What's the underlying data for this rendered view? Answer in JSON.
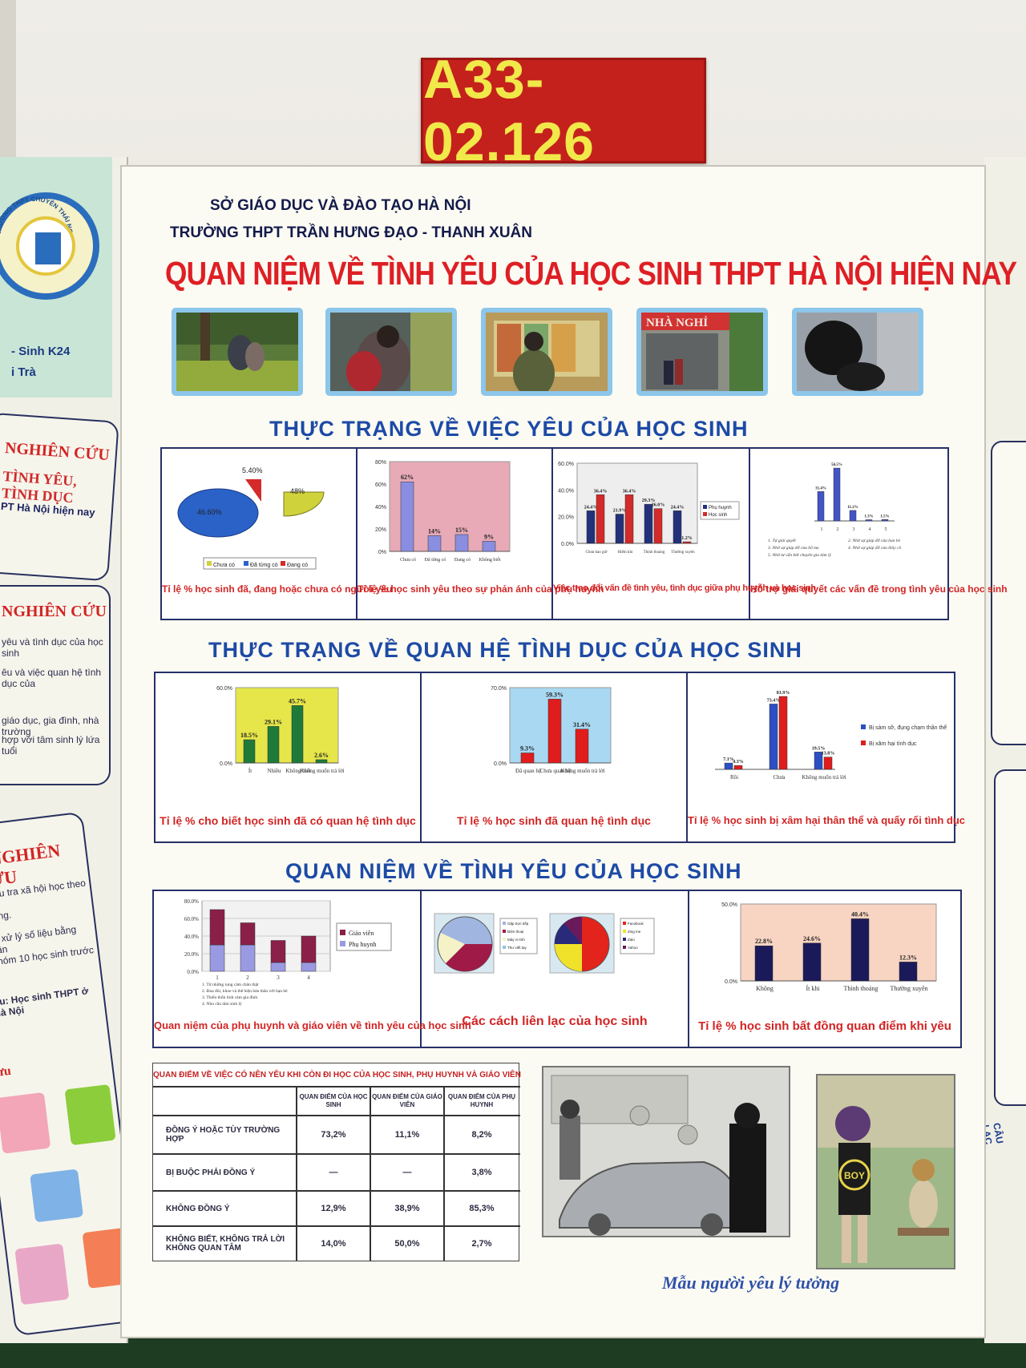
{
  "booth_tag": "A33- 02.126",
  "header": {
    "line1": "SỞ GIÁO DỤC VÀ ĐÀO TẠO HÀ NỘI",
    "line2": "TRƯỜNG THPT TRẦN HƯNG ĐẠO - THANH XUÂN"
  },
  "title": "QUAN NIỆM VỀ TÌNH YÊU CỦA HỌC SINH THPT HÀ NỘI HIỆN NAY",
  "sections": {
    "s1": "THỰC TRẠNG VỀ VIỆC YÊU CỦA HỌC SINH",
    "s2": "THỰC TRẠNG VỀ QUAN HỆ TÌNH DỤC CỦA HỌC SINH",
    "s3": "QUAN NIỆM VỀ TÌNH YÊU CỦA HỌC SINH"
  },
  "photo_sign": "NHÀ NGHỈ",
  "left_wing": {
    "logo_text": "TRƯỜNG THPT CHUYÊN THÁI NGUYÊN",
    "author1": "- Sinh K24",
    "author2": "i Trà",
    "p1_title_a": "NGHIÊN CỨU",
    "p1_title_b": "TÌNH YÊU, TÌNH DỤC",
    "p1_title_c": "PT Hà Nội hiện nay",
    "p2_title": "NGHIÊN CỨU",
    "p2_lines": [
      "yêu và tình dục của học sinh",
      "êu và việc quan hệ tình dục của",
      "giáo dục, gia đình, nhà trường",
      "hợp với tâm sinh lý lứa tuổi"
    ],
    "p3_title": "P NGHIÊN CỨU",
    "p3_lines": [
      ": Điều tra xã hội học theo",
      "ngang.",
      "tra, xử lý số liệu bằng phần",
      "i nhóm 10 học sinh trước và",
      "ữu: Học sinh THPT ở Hà Nội"
    ],
    "p3_sub": "ưu"
  },
  "right_wing": {
    "bottom_text": "CÂU LẠC"
  },
  "charts": {
    "c1": {
      "caption": "Tỉ lệ % học sinh đã, đang hoặc chưa có người yêu",
      "labels": [
        "5.40%",
        "48%",
        "46.60%"
      ],
      "legend": [
        "Chưa có",
        "Đã từng có",
        "Đang có"
      ]
    },
    "c2": {
      "caption": "Tỉ lệ % học sinh yêu theo sự phản ánh của phụ huynh",
      "yticks": [
        "80%",
        "60%",
        "40%",
        "20%",
        "0%"
      ],
      "labels": [
        "62%",
        "14%",
        "15%",
        "9%"
      ],
      "cats": [
        "Chưa có",
        "Đã từng có",
        "Đang có",
        "Không biết"
      ]
    },
    "c3": {
      "caption": "Việc trao đổi vấn đề tình yêu, tình dục giữa phụ huynh và học sinh",
      "yticks": [
        "60.0%",
        "40.0%",
        "20.0%",
        "0.0%"
      ],
      "series": [
        "Phụ huynh",
        "Học sinh"
      ],
      "labels_a": [
        "24.4%",
        "21.9%",
        "29.3%",
        "24.4%"
      ],
      "labels_b": [
        "36.4%",
        "36.4%",
        "26.0%",
        "1.2%"
      ],
      "cats": [
        "Chưa bao giờ",
        "Hiếm khi",
        "Thỉnh thoảng",
        "Thường xuyên"
      ]
    },
    "c4": {
      "caption": "Hỗ trợ giải quyết các vấn đề trong tình yêu của học sinh",
      "labels": [
        "31.4%",
        "56.5%",
        "11.2%",
        "1.3%",
        "1.5%"
      ],
      "cats": [
        "1",
        "2",
        "3",
        "4",
        "5"
      ],
      "notes": [
        "1. Tự giải quyết",
        "2. Nhờ sự giúp đỡ của bạn bè",
        "3. Nhờ sự giúp đỡ của bố mẹ",
        "4. Nhờ sự giúp đỡ của thầy cô",
        "5. Nhờ tư vấn bởi chuyên gia tâm lý"
      ]
    },
    "c5": {
      "caption": "Tỉ lệ % cho biết học sinh đã có quan hệ tình dục",
      "yticks": [
        "60.0%",
        "0.0%"
      ],
      "labels": [
        "18.5%",
        "29.1%",
        "45.7%",
        "2.6%"
      ],
      "cats": [
        "Ít",
        "Nhiều",
        "Không biết",
        "Không muốn trả lời"
      ]
    },
    "c6": {
      "caption": "Tỉ lệ % học sinh đã quan hệ tình dục",
      "yticks": [
        "70.0%",
        "0.0%"
      ],
      "labels": [
        "9.3%",
        "59.3%",
        "31.4%"
      ],
      "cats": [
        "Đã quan hệ",
        "Chưa quan hệ",
        "Không muốn trả lời"
      ]
    },
    "c7": {
      "caption": "Tỉ lệ % học sinh bị xâm hại thân thể và quấy rối tình dục",
      "labels_a": [
        "7.1%",
        "73.4%",
        "19.5%"
      ],
      "labels_b": [
        "4.3%",
        "81.9%",
        "13.8%"
      ],
      "cats": [
        "Rồi",
        "Chưa",
        "Không muốn trả lời"
      ],
      "series": [
        "Bị sàm sỡ, đụng chạm thân thể",
        "Bị xâm hại tình dục"
      ]
    },
    "c8": {
      "caption": "Quan niệm của phụ huynh và giáo viên về tình yêu của học sinh",
      "yticks": [
        "80.0%",
        "60.0%",
        "40.0%",
        "20.0%",
        "0.0%"
      ],
      "series": [
        "Giáo viên",
        "Phụ huynh"
      ],
      "cats": [
        "1",
        "2",
        "3",
        "4"
      ],
      "notes": [
        "1. Từ những rung cảm chân thật",
        "2. Đua đòi, khoe và thể hiện bản thân với bạn bè",
        "3. Thiếu thốn tình cảm gia đình",
        "4. Nhu cầu tâm sinh lý"
      ]
    },
    "c9": {
      "caption": "Các cách liên lạc của học sinh",
      "legend_a": [
        "Gặp trực tiếp",
        "Điện thoại",
        "Máy vi tính",
        "Thư viết tay"
      ],
      "legend_b": [
        "Facebook",
        "Zing me",
        "Zalo",
        "Yahoo"
      ]
    },
    "c10": {
      "caption": "Tỉ lệ % học sinh bất đồng quan điểm khi yêu",
      "yticks": [
        "50.0%",
        "0.0%"
      ],
      "labels": [
        "22.8%",
        "24.6%",
        "40.4%",
        "12.3%"
      ],
      "cats": [
        "Không",
        "Ít khi",
        "Thỉnh thoảng",
        "Thường xuyên"
      ]
    }
  },
  "table": {
    "title": "QUAN ĐIỂM VỀ VIỆC CÓ NÊN YÊU KHI CÒN ĐI HỌC CỦA HỌC SINH, PHỤ HUYNH VÀ GIÁO VIÊN",
    "col1": "QUAN ĐIỂM CỦA HỌC SINH",
    "col2": "QUAN ĐIỂM CỦA GIÁO VIÊN",
    "col3": "QUAN ĐIỂM CỦA PHỤ HUYNH",
    "r1": {
      "label": "ĐỒNG Ý HOẶC TÙY TRƯỜNG HỢP",
      "a": "73,2%",
      "b": "11,1%",
      "c": "8,2%"
    },
    "r2": {
      "label": "BỊ BUỘC PHẢI ĐỒNG Ý",
      "a": "—",
      "b": "—",
      "c": "3,8%"
    },
    "r3": {
      "label": "KHÔNG ĐỒNG Ý",
      "a": "12,9%",
      "b": "38,9%",
      "c": "85,3%"
    },
    "r4": {
      "label": "KHÔNG BIẾT, KHÔNG TRẢ LỜI",
      "label2": "KHÔNG QUAN TÂM",
      "a": "14,0%",
      "b": "50,0%",
      "c": "2,7%"
    }
  },
  "drawing": {
    "shirt_text": "BOY"
  },
  "ideal_caption": "Mẫu người yêu lý tưởng"
}
